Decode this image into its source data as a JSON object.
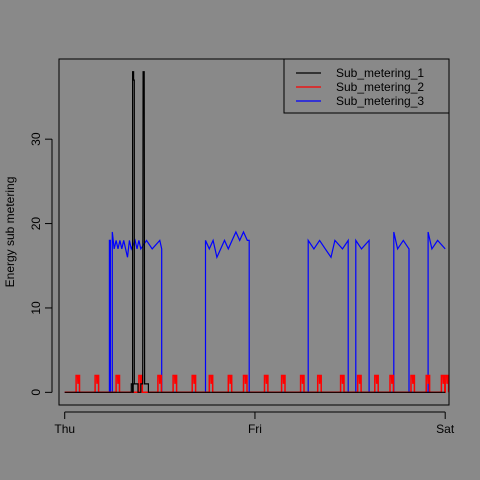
{
  "chart_data": {
    "type": "line",
    "title": "",
    "xlabel": "",
    "ylabel": "Energy sub metering",
    "xlim": [
      -0.03,
      2.02
    ],
    "ylim": [
      -1.5,
      39.5
    ],
    "x_ticks": [
      {
        "value": 0,
        "label": "Thu"
      },
      {
        "value": 1,
        "label": "Fri"
      },
      {
        "value": 2,
        "label": "Sat"
      }
    ],
    "y_ticks": [
      {
        "value": 0,
        "label": "0"
      },
      {
        "value": 10,
        "label": "10"
      },
      {
        "value": 20,
        "label": "20"
      },
      {
        "value": 30,
        "label": "30"
      }
    ],
    "x_unit": "days from Thu 00:00",
    "grid": false,
    "legend_position": "top-right",
    "series": [
      {
        "name": "Sub_metering_1",
        "color": "#000000",
        "points": [
          [
            0,
            0
          ],
          [
            0.35,
            0
          ],
          [
            0.35,
            1
          ],
          [
            0.36,
            1
          ],
          [
            0.36,
            0
          ],
          [
            0.357,
            0
          ],
          [
            0.357,
            38
          ],
          [
            0.362,
            38
          ],
          [
            0.362,
            37
          ],
          [
            0.366,
            37
          ],
          [
            0.366,
            1
          ],
          [
            0.385,
            1
          ],
          [
            0.385,
            0
          ],
          [
            0.4,
            0
          ],
          [
            0.4,
            1
          ],
          [
            0.41,
            1
          ],
          [
            0.412,
            38
          ],
          [
            0.418,
            38
          ],
          [
            0.42,
            1
          ],
          [
            0.44,
            1
          ],
          [
            0.44,
            0
          ],
          [
            2.0,
            0
          ]
        ]
      },
      {
        "name": "Sub_metering_2",
        "color": "#ff0000",
        "pulses": [
          0.06,
          0.16,
          0.27,
          0.39,
          0.49,
          0.57,
          0.67,
          0.76,
          0.86,
          0.94,
          1.05,
          1.14,
          1.24,
          1.33,
          1.45,
          1.54,
          1.63,
          1.71,
          1.82,
          1.9,
          1.98,
          2.0
        ],
        "pulse_value": 2,
        "base_value": 0
      },
      {
        "name": "Sub_metering_3",
        "color": "#0000ff",
        "points": [
          [
            0,
            0
          ],
          [
            0.235,
            0
          ],
          [
            0.235,
            18
          ],
          [
            0.24,
            18
          ],
          [
            0.24,
            0
          ],
          [
            0.25,
            0
          ],
          [
            0.25,
            19
          ],
          [
            0.26,
            17
          ],
          [
            0.27,
            18
          ],
          [
            0.28,
            17
          ],
          [
            0.29,
            18
          ],
          [
            0.3,
            17
          ],
          [
            0.31,
            18
          ],
          [
            0.32,
            17
          ],
          [
            0.33,
            16
          ],
          [
            0.34,
            18
          ],
          [
            0.35,
            17
          ],
          [
            0.37,
            18
          ],
          [
            0.38,
            17
          ],
          [
            0.39,
            18
          ],
          [
            0.4,
            17
          ],
          [
            0.43,
            18
          ],
          [
            0.46,
            17
          ],
          [
            0.5,
            18
          ],
          [
            0.51,
            17
          ],
          [
            0.51,
            0
          ],
          [
            0.74,
            0
          ],
          [
            0.74,
            18
          ],
          [
            0.76,
            17
          ],
          [
            0.78,
            18
          ],
          [
            0.8,
            16
          ],
          [
            0.82,
            17
          ],
          [
            0.84,
            18
          ],
          [
            0.86,
            17
          ],
          [
            0.88,
            18
          ],
          [
            0.9,
            19
          ],
          [
            0.92,
            18
          ],
          [
            0.94,
            19
          ],
          [
            0.96,
            18
          ],
          [
            0.97,
            18
          ],
          [
            0.97,
            0
          ],
          [
            1.28,
            0
          ],
          [
            1.28,
            18
          ],
          [
            1.31,
            17
          ],
          [
            1.34,
            18
          ],
          [
            1.37,
            17
          ],
          [
            1.4,
            16
          ],
          [
            1.42,
            18
          ],
          [
            1.46,
            17
          ],
          [
            1.49,
            18
          ],
          [
            1.49,
            0
          ],
          [
            1.53,
            0
          ],
          [
            1.53,
            18
          ],
          [
            1.56,
            17
          ],
          [
            1.6,
            18
          ],
          [
            1.6,
            0
          ],
          [
            1.73,
            0
          ],
          [
            1.73,
            19
          ],
          [
            1.75,
            17
          ],
          [
            1.78,
            18
          ],
          [
            1.81,
            17
          ],
          [
            1.81,
            0
          ],
          [
            1.91,
            0
          ],
          [
            1.91,
            19
          ],
          [
            1.93,
            17
          ],
          [
            1.96,
            18
          ],
          [
            2.0,
            17
          ]
        ]
      }
    ]
  }
}
